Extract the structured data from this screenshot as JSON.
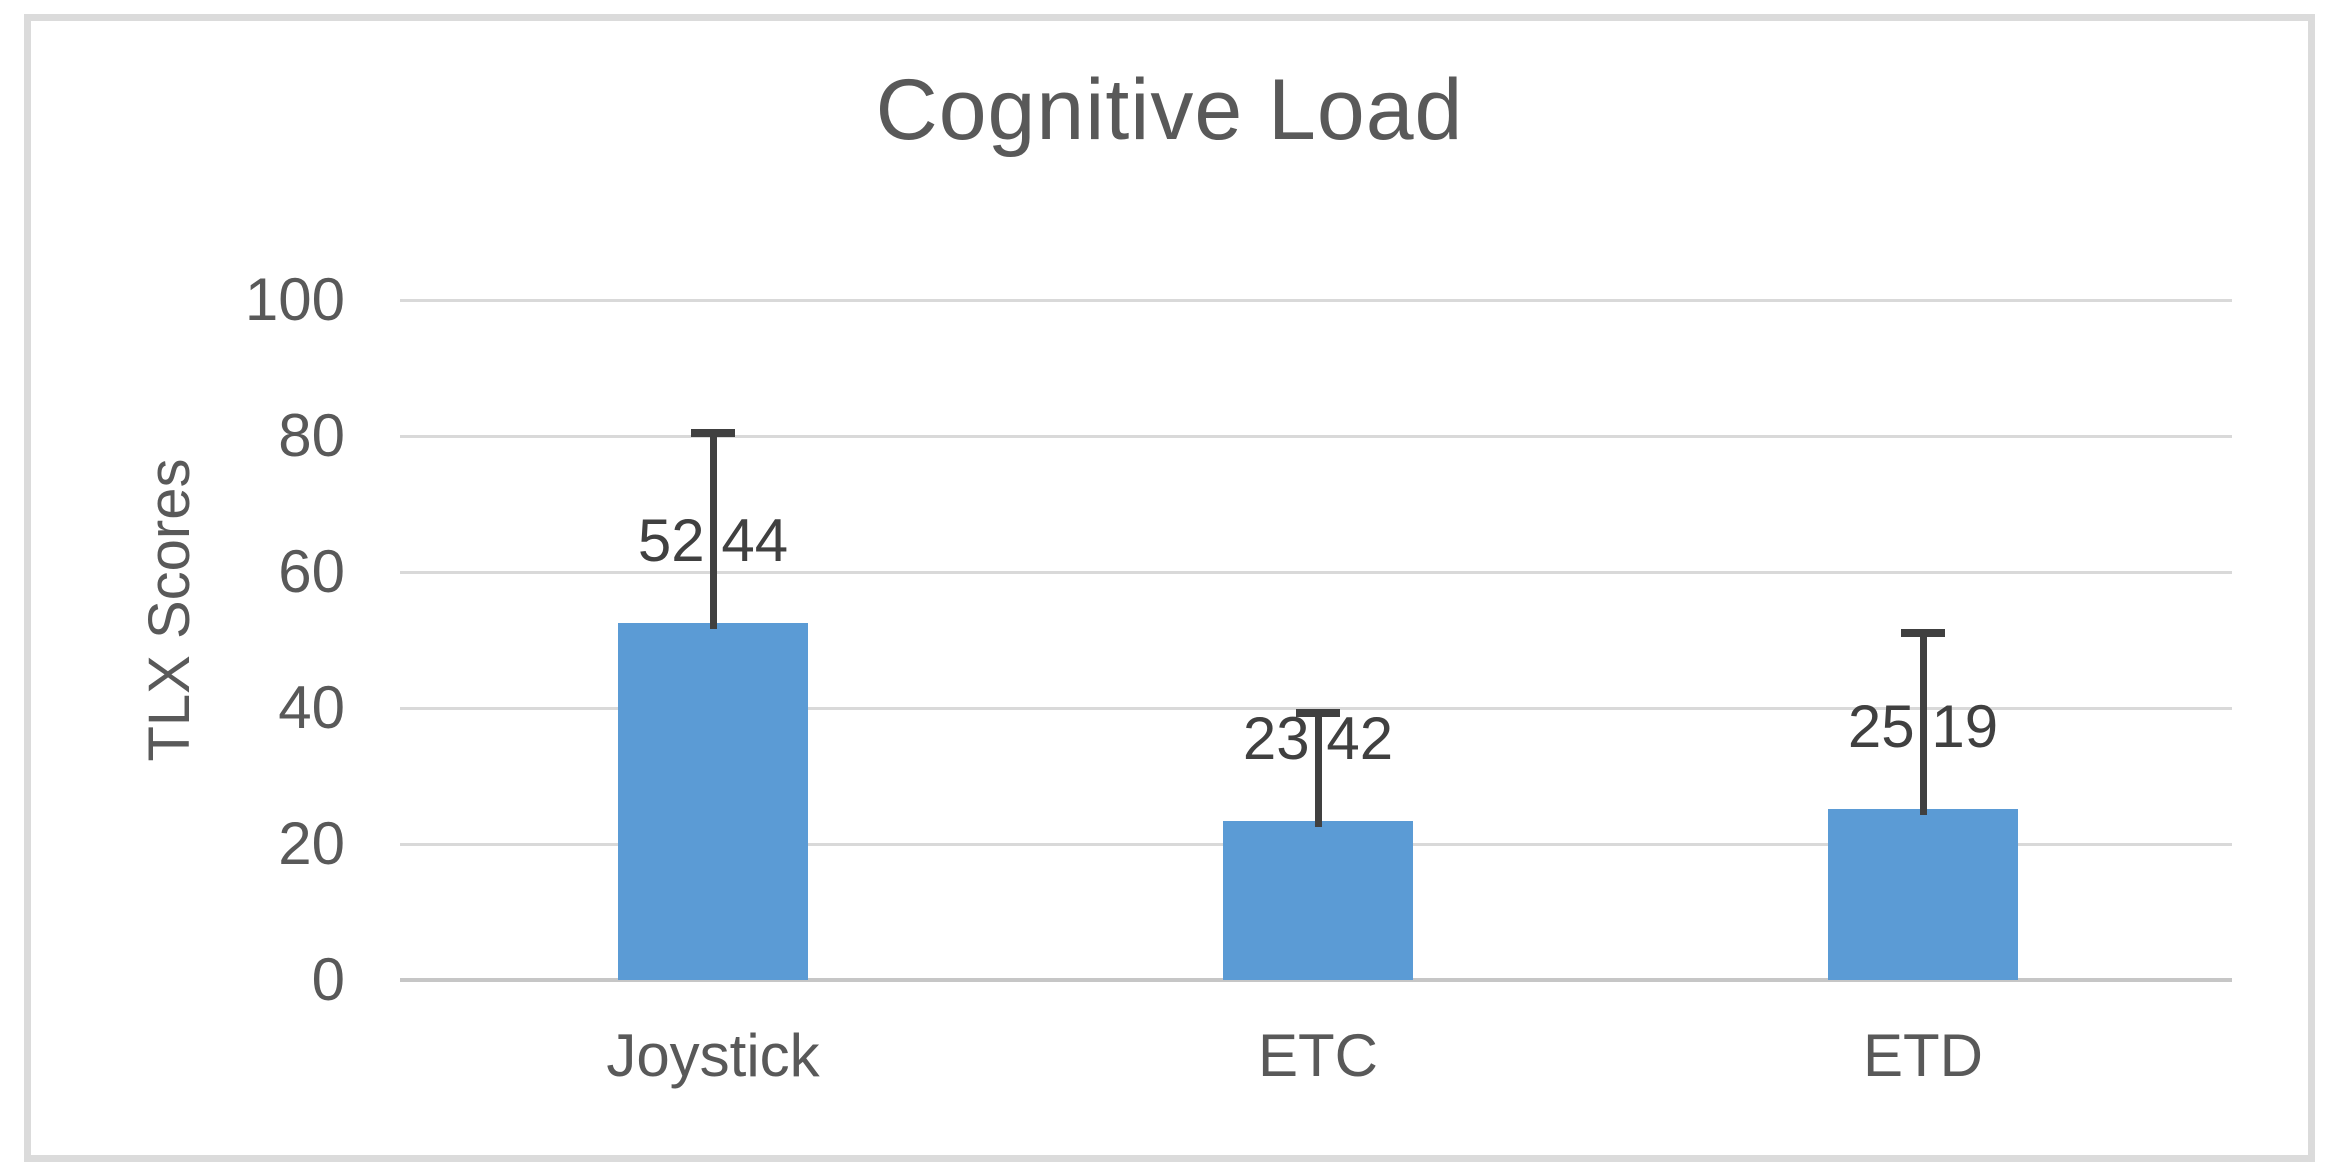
{
  "chart_data": {
    "type": "bar",
    "title": "Cognitive Load",
    "ylabel": "TLX Scores",
    "xlabel": "",
    "categories": [
      "Joystick",
      "ETC",
      "ETD"
    ],
    "values": [
      52.44,
      23.42,
      25.19
    ],
    "data_labels": [
      "52.44",
      "23.42",
      "25.19"
    ],
    "error_plus": [
      28.0,
      15.9,
      25.8
    ],
    "ylim": [
      0,
      100
    ],
    "yticks": [
      0,
      20,
      40,
      60,
      80,
      100
    ],
    "grid": "horizontal gridlines on",
    "legend": "none"
  },
  "colors": {
    "bar": "#5b9bd5",
    "gridline": "#d9d9d9",
    "axis_line": "#c6c6c6",
    "text": "#595959",
    "data_label": "#404040",
    "error_bar": "#404040",
    "frame_border": "#dbdbdb"
  }
}
